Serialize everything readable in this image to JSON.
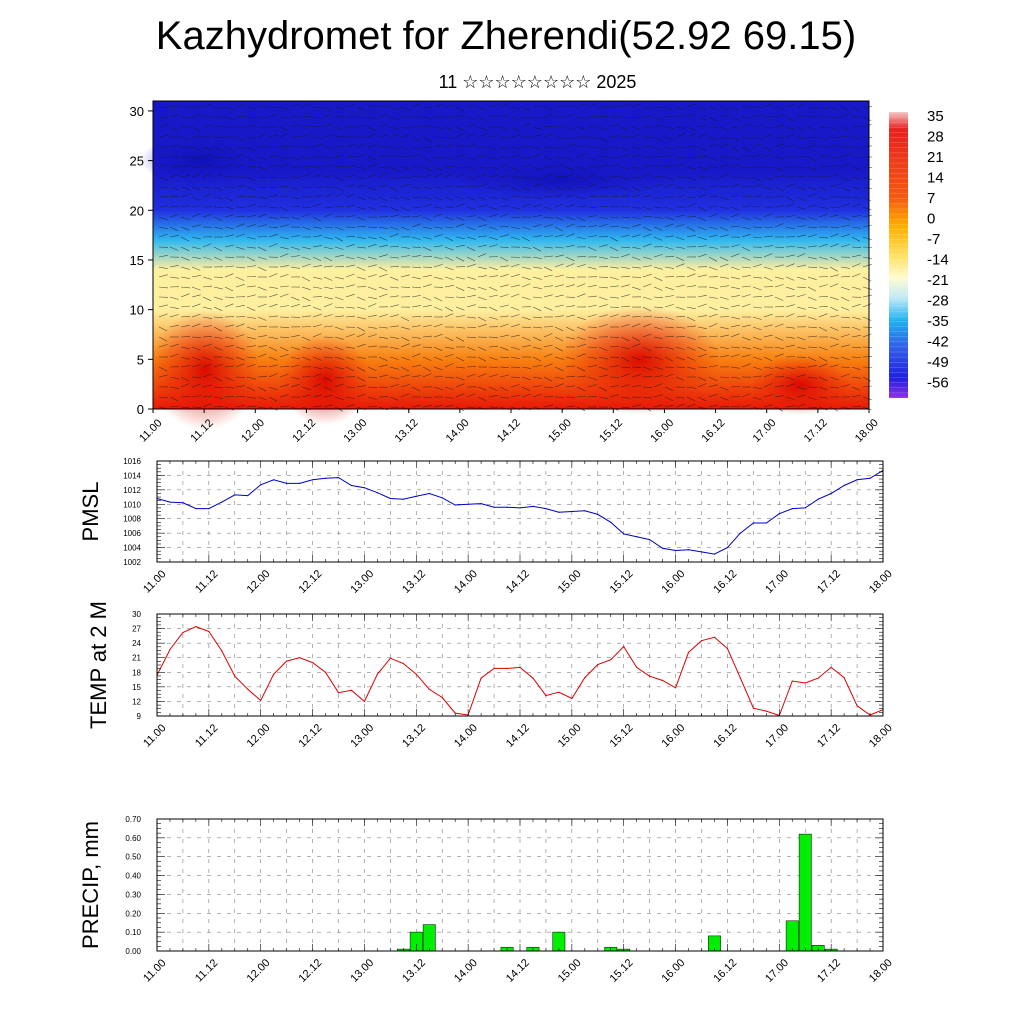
{
  "title": "Kazhydromet for Zherendi(52.92 69.15)",
  "subtitle": "11 ☆☆☆☆☆☆☆☆ 2025",
  "chart_data": [
    {
      "type": "heatmap",
      "name": "temperature-wind-cross-section",
      "x_ticks": [
        "11.00",
        "11.12",
        "12.00",
        "12.12",
        "13.00",
        "13.12",
        "14.00",
        "14.12",
        "15.00",
        "15.12",
        "16.00",
        "16.12",
        "17.00",
        "17.12",
        "18.00"
      ],
      "y_ticks": [
        "0",
        "5",
        "10",
        "15",
        "20",
        "25",
        "30"
      ],
      "ylim": [
        0,
        31
      ],
      "colorbar_labels": [
        "35",
        "28",
        "21",
        "14",
        "7",
        "0",
        "-7",
        "-14",
        "-21",
        "-28",
        "-35",
        "-42",
        "-49",
        "-56"
      ],
      "colors": {
        "hot": "#e81808",
        "warm": "#f88010",
        "mild": "#fff0a0",
        "cool": "#30b8f0",
        "cold": "#2030e0",
        "coldest": "#1818c8"
      },
      "layers": [
        {
          "height": 0,
          "value": 25
        },
        {
          "height": 5,
          "value": 17
        },
        {
          "height": 10,
          "value": 6
        },
        {
          "height": 14,
          "value": -7
        },
        {
          "height": 17,
          "value": -21
        },
        {
          "height": 20,
          "value": -35
        },
        {
          "height": 24,
          "value": -49
        },
        {
          "height": 31,
          "value": -56
        }
      ]
    },
    {
      "type": "line",
      "name": "pmsl",
      "ylabel": "PMSL",
      "color": "#0000cc",
      "ylim": [
        1002,
        1016
      ],
      "y_ticks": [
        "1002",
        "1004",
        "1006",
        "1008",
        "1010",
        "1012",
        "1014",
        "1016"
      ],
      "x_ticks": [
        "11.00",
        "11.12",
        "12.00",
        "12.12",
        "13.00",
        "13.12",
        "14.00",
        "14.12",
        "15.00",
        "15.12",
        "16.00",
        "16.12",
        "17.00",
        "17.12",
        "18.00"
      ],
      "x": [
        0,
        3,
        6,
        9,
        12,
        15,
        18,
        21,
        24,
        27,
        30,
        33,
        36,
        39,
        42,
        45,
        48,
        51,
        54,
        57,
        60,
        63,
        66,
        69,
        72,
        75,
        78,
        81,
        84,
        87,
        90,
        93,
        96,
        99,
        102,
        105,
        108,
        111,
        114,
        117,
        120,
        123,
        126,
        129,
        132,
        135,
        138,
        141,
        144,
        147,
        150,
        153,
        156,
        159,
        162,
        165,
        168
      ],
      "values": [
        1010.8,
        1010.3,
        1010.2,
        1009.4,
        1009.4,
        1010.3,
        1011.3,
        1011.2,
        1012.7,
        1013.4,
        1012.9,
        1012.9,
        1013.4,
        1013.6,
        1013.7,
        1012.6,
        1012.3,
        1011.6,
        1010.8,
        1010.7,
        1011.1,
        1011.5,
        1010.9,
        1009.9,
        1010.0,
        1010.1,
        1009.6,
        1009.6,
        1009.5,
        1009.7,
        1009.4,
        1008.9,
        1009.0,
        1009.1,
        1008.6,
        1007.5,
        1005.9,
        1005.5,
        1005.1,
        1003.9,
        1003.6,
        1003.7,
        1003.4,
        1003.1,
        1004.0,
        1006.0,
        1007.4,
        1007.4,
        1008.7,
        1009.4,
        1009.5,
        1010.7,
        1011.5,
        1012.6,
        1013.4,
        1013.6,
        1014.7
      ]
    },
    {
      "type": "line",
      "name": "temp-2m",
      "ylabel": "TEMP at 2 M",
      "color": "#dd0000",
      "ylim": [
        9,
        30
      ],
      "y_ticks": [
        "9",
        "12",
        "15",
        "18",
        "21",
        "24",
        "27",
        "30"
      ],
      "x_ticks": [
        "11.00",
        "11.12",
        "12.00",
        "12.12",
        "13.00",
        "13.12",
        "14.00",
        "14.12",
        "15.00",
        "15.12",
        "16.00",
        "16.12",
        "17.00",
        "17.12",
        "18.00"
      ],
      "x": [
        0,
        3,
        6,
        9,
        12,
        15,
        18,
        21,
        24,
        27,
        30,
        33,
        36,
        39,
        42,
        45,
        48,
        51,
        54,
        57,
        60,
        63,
        66,
        69,
        72,
        75,
        78,
        81,
        84,
        87,
        90,
        93,
        96,
        99,
        102,
        105,
        108,
        111,
        114,
        117,
        120,
        123,
        126,
        129,
        132,
        135,
        138,
        141,
        144,
        147,
        150,
        153,
        156,
        159,
        162,
        165,
        168
      ],
      "values": [
        17.4,
        22.7,
        26.2,
        27.4,
        26.4,
        22.4,
        17.2,
        14.5,
        12.2,
        17.6,
        20.3,
        21.0,
        20.0,
        18.0,
        13.8,
        14.3,
        12.0,
        17.6,
        20.9,
        19.8,
        17.6,
        14.5,
        12.8,
        9.6,
        9.2,
        16.8,
        18.8,
        18.8,
        19.0,
        16.8,
        13.2,
        13.9,
        12.6,
        16.9,
        19.6,
        20.6,
        23.3,
        19.0,
        17.2,
        16.3,
        14.8,
        22.1,
        24.5,
        25.2,
        22.9,
        16.8,
        10.6,
        10.0,
        9.1,
        16.2,
        15.8,
        16.8,
        19.0,
        16.9,
        11.1,
        9.2,
        10.3
      ]
    },
    {
      "type": "bar",
      "name": "precip",
      "ylabel": "PRECIP, mm",
      "color": "#00ee00",
      "ylim": [
        0,
        0.7
      ],
      "y_ticks": [
        "0.00",
        "0.10",
        "0.20",
        "0.30",
        "0.40",
        "0.50",
        "0.60",
        "0.70"
      ],
      "x_ticks": [
        "11.00",
        "11.12",
        "12.00",
        "12.12",
        "13.00",
        "13.12",
        "14.00",
        "14.12",
        "15.00",
        "15.12",
        "16.00",
        "16.12",
        "17.00",
        "17.12",
        "18.00"
      ],
      "x": [
        57,
        60,
        63,
        81,
        87,
        93,
        105,
        108,
        129,
        147,
        150,
        153,
        156
      ],
      "values": [
        0.01,
        0.1,
        0.14,
        0.02,
        0.02,
        0.1,
        0.02,
        0.01,
        0.08,
        0.16,
        0.62,
        0.03,
        0.01
      ]
    }
  ]
}
